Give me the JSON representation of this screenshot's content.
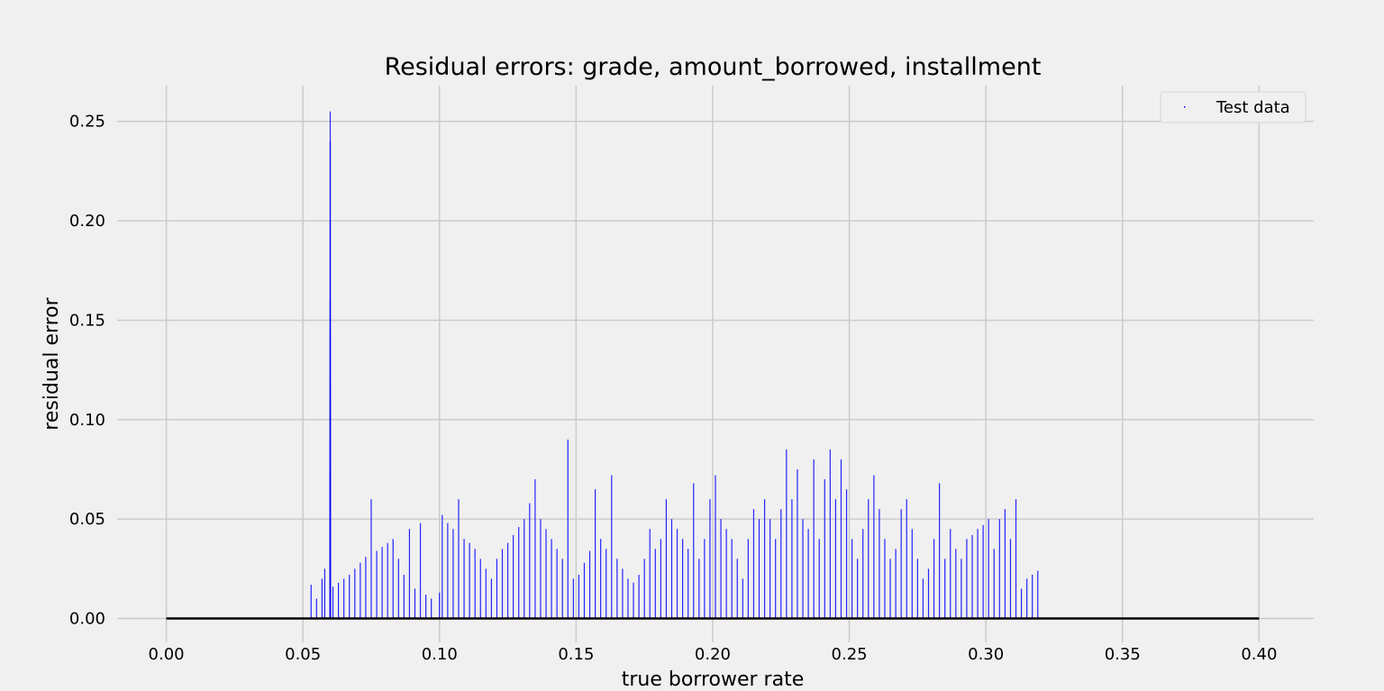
{
  "chart_data": {
    "type": "scatter",
    "title": "Residual errors: grade, amount_borrowed, installment",
    "xlabel": "true borrower rate",
    "ylabel": "residual error",
    "xlim": [
      -0.018,
      0.42
    ],
    "ylim": [
      -0.012,
      0.268
    ],
    "x_ticks": [
      "0.00",
      "0.05",
      "0.10",
      "0.15",
      "0.20",
      "0.25",
      "0.30",
      "0.35",
      "0.40"
    ],
    "x_tick_values": [
      0.0,
      0.05,
      0.1,
      0.15,
      0.2,
      0.25,
      0.3,
      0.35,
      0.4
    ],
    "y_ticks": [
      "0.00",
      "0.05",
      "0.10",
      "0.15",
      "0.20",
      "0.25"
    ],
    "y_tick_values": [
      0.0,
      0.05,
      0.1,
      0.15,
      0.2,
      0.25
    ],
    "grid": true,
    "legend": {
      "position": "top-right",
      "entries": [
        "Test data"
      ]
    },
    "reference_line": {
      "y": 0.0,
      "x_range": [
        0.0,
        0.4
      ],
      "color": "#000000"
    },
    "series": [
      {
        "name": "Test data",
        "color": "#0000ff",
        "marker": "pixel",
        "points": [
          [
            0.053,
            0.017
          ],
          [
            0.055,
            0.01
          ],
          [
            0.057,
            0.02
          ],
          [
            0.058,
            0.025
          ],
          [
            0.06,
            0.255
          ],
          [
            0.06,
            0.24
          ],
          [
            0.06,
            0.2
          ],
          [
            0.06,
            0.16
          ],
          [
            0.06,
            0.145
          ],
          [
            0.06,
            0.12
          ],
          [
            0.06,
            0.11
          ],
          [
            0.06,
            0.09
          ],
          [
            0.06,
            0.075
          ],
          [
            0.06,
            0.05
          ],
          [
            0.06,
            0.03
          ],
          [
            0.061,
            0.016
          ],
          [
            0.063,
            0.018
          ],
          [
            0.065,
            0.02
          ],
          [
            0.067,
            0.022
          ],
          [
            0.069,
            0.025
          ],
          [
            0.071,
            0.028
          ],
          [
            0.073,
            0.031
          ],
          [
            0.075,
            0.06
          ],
          [
            0.077,
            0.034
          ],
          [
            0.079,
            0.036
          ],
          [
            0.081,
            0.038
          ],
          [
            0.083,
            0.04
          ],
          [
            0.085,
            0.03
          ],
          [
            0.087,
            0.022
          ],
          [
            0.089,
            0.045
          ],
          [
            0.091,
            0.015
          ],
          [
            0.093,
            0.048
          ],
          [
            0.095,
            0.012
          ],
          [
            0.097,
            0.01
          ],
          [
            0.1,
            0.013
          ],
          [
            0.101,
            0.052
          ],
          [
            0.103,
            0.048
          ],
          [
            0.105,
            0.045
          ],
          [
            0.107,
            0.06
          ],
          [
            0.109,
            0.04
          ],
          [
            0.111,
            0.038
          ],
          [
            0.113,
            0.035
          ],
          [
            0.115,
            0.03
          ],
          [
            0.117,
            0.025
          ],
          [
            0.119,
            0.02
          ],
          [
            0.121,
            0.03
          ],
          [
            0.123,
            0.035
          ],
          [
            0.125,
            0.038
          ],
          [
            0.127,
            0.042
          ],
          [
            0.129,
            0.046
          ],
          [
            0.131,
            0.05
          ],
          [
            0.133,
            0.058
          ],
          [
            0.135,
            0.07
          ],
          [
            0.137,
            0.05
          ],
          [
            0.139,
            0.045
          ],
          [
            0.141,
            0.04
          ],
          [
            0.143,
            0.035
          ],
          [
            0.145,
            0.03
          ],
          [
            0.147,
            0.09
          ],
          [
            0.149,
            0.02
          ],
          [
            0.151,
            0.022
          ],
          [
            0.153,
            0.028
          ],
          [
            0.155,
            0.034
          ],
          [
            0.157,
            0.065
          ],
          [
            0.159,
            0.04
          ],
          [
            0.161,
            0.035
          ],
          [
            0.163,
            0.072
          ],
          [
            0.165,
            0.03
          ],
          [
            0.167,
            0.025
          ],
          [
            0.169,
            0.02
          ],
          [
            0.171,
            0.018
          ],
          [
            0.173,
            0.022
          ],
          [
            0.175,
            0.03
          ],
          [
            0.177,
            0.045
          ],
          [
            0.179,
            0.035
          ],
          [
            0.181,
            0.04
          ],
          [
            0.183,
            0.06
          ],
          [
            0.185,
            0.05
          ],
          [
            0.187,
            0.045
          ],
          [
            0.189,
            0.04
          ],
          [
            0.191,
            0.035
          ],
          [
            0.193,
            0.068
          ],
          [
            0.195,
            0.03
          ],
          [
            0.197,
            0.04
          ],
          [
            0.199,
            0.06
          ],
          [
            0.201,
            0.072
          ],
          [
            0.203,
            0.05
          ],
          [
            0.205,
            0.045
          ],
          [
            0.207,
            0.04
          ],
          [
            0.209,
            0.03
          ],
          [
            0.211,
            0.02
          ],
          [
            0.213,
            0.04
          ],
          [
            0.215,
            0.055
          ],
          [
            0.217,
            0.05
          ],
          [
            0.219,
            0.06
          ],
          [
            0.221,
            0.05
          ],
          [
            0.223,
            0.04
          ],
          [
            0.225,
            0.055
          ],
          [
            0.227,
            0.085
          ],
          [
            0.229,
            0.06
          ],
          [
            0.231,
            0.075
          ],
          [
            0.233,
            0.05
          ],
          [
            0.235,
            0.045
          ],
          [
            0.237,
            0.08
          ],
          [
            0.239,
            0.04
          ],
          [
            0.241,
            0.07
          ],
          [
            0.243,
            0.085
          ],
          [
            0.245,
            0.06
          ],
          [
            0.247,
            0.08
          ],
          [
            0.249,
            0.065
          ],
          [
            0.251,
            0.04
          ],
          [
            0.253,
            0.03
          ],
          [
            0.255,
            0.045
          ],
          [
            0.257,
            0.06
          ],
          [
            0.259,
            0.072
          ],
          [
            0.261,
            0.055
          ],
          [
            0.263,
            0.04
          ],
          [
            0.265,
            0.03
          ],
          [
            0.267,
            0.035
          ],
          [
            0.269,
            0.055
          ],
          [
            0.271,
            0.06
          ],
          [
            0.273,
            0.045
          ],
          [
            0.275,
            0.03
          ],
          [
            0.277,
            0.02
          ],
          [
            0.279,
            0.025
          ],
          [
            0.281,
            0.04
          ],
          [
            0.283,
            0.068
          ],
          [
            0.285,
            0.03
          ],
          [
            0.287,
            0.045
          ],
          [
            0.289,
            0.035
          ],
          [
            0.291,
            0.03
          ],
          [
            0.293,
            0.04
          ],
          [
            0.295,
            0.042
          ],
          [
            0.297,
            0.045
          ],
          [
            0.299,
            0.047
          ],
          [
            0.301,
            0.05
          ],
          [
            0.303,
            0.035
          ],
          [
            0.305,
            0.05
          ],
          [
            0.307,
            0.055
          ],
          [
            0.309,
            0.04
          ],
          [
            0.311,
            0.06
          ],
          [
            0.313,
            0.015
          ],
          [
            0.315,
            0.02
          ],
          [
            0.317,
            0.022
          ],
          [
            0.319,
            0.024
          ]
        ]
      }
    ]
  }
}
